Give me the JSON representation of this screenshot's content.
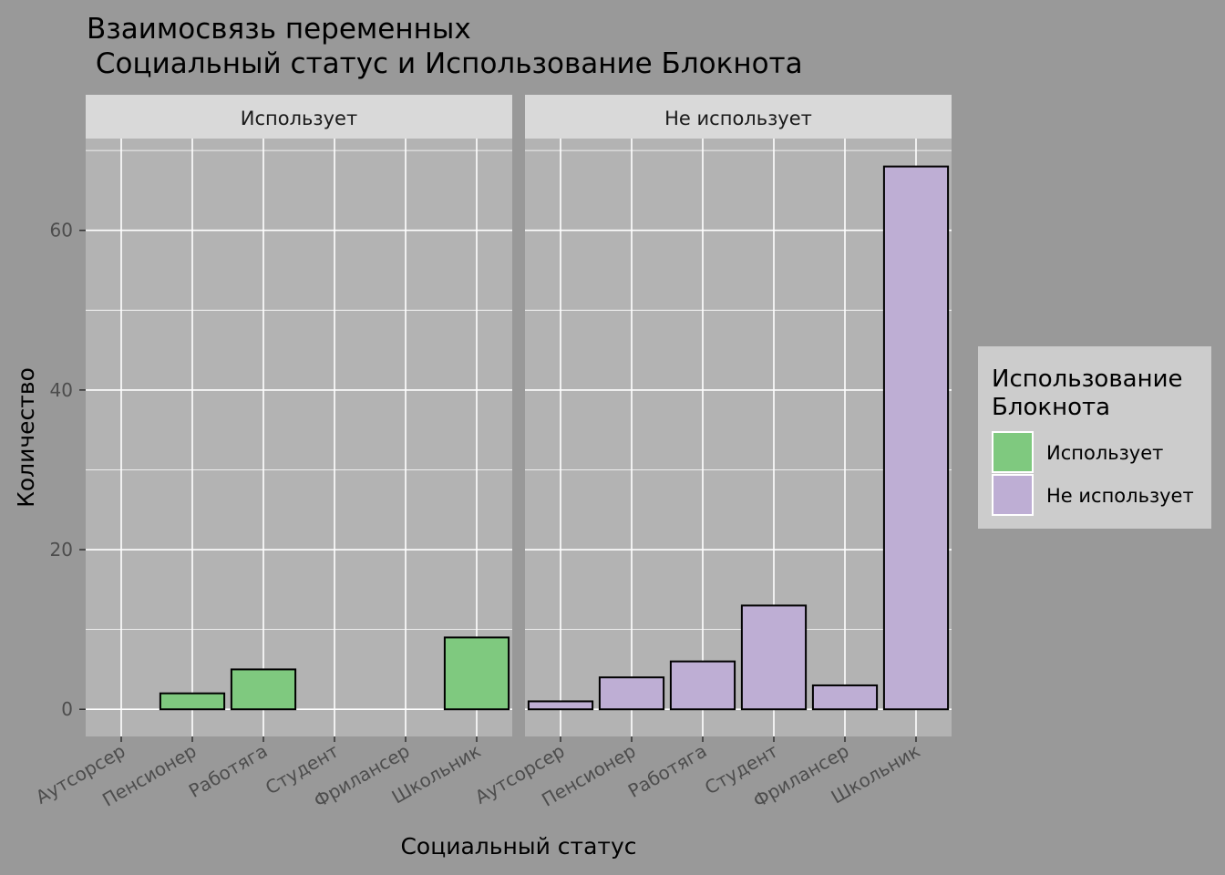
{
  "title_line1": "Взаимосвязь переменных",
  "title_line2": " Социальный статус и Использование Блокнота",
  "chart_data": {
    "type": "bar",
    "xlabel": "Социальный статус",
    "ylabel": "Количество",
    "ylim": [
      -3.4,
      71.5
    ],
    "yticks": [
      0,
      20,
      40,
      60
    ],
    "grid": true,
    "legend_position": "right",
    "legend_title_line1": "Использование",
    "legend_title_line2": "Блокнота",
    "categories": [
      "Аутсорсер",
      "Пенсионер",
      "Работяга",
      "Студент",
      "Фрилансер",
      "Школьник"
    ],
    "facets": [
      {
        "label": "Использует",
        "color": "#7FC97F",
        "values": [
          0,
          2,
          5,
          0,
          0,
          9
        ]
      },
      {
        "label": "Не использует",
        "color": "#BEAED4",
        "values": [
          1,
          4,
          6,
          13,
          3,
          68
        ]
      }
    ]
  },
  "colors": {
    "background": "#999999",
    "panel": "#B3B3B3",
    "strip": "#D9D9D9",
    "legend_bg": "#CCCCCC",
    "grid": "#FFFFFF",
    "bar_outline": "#000000"
  }
}
